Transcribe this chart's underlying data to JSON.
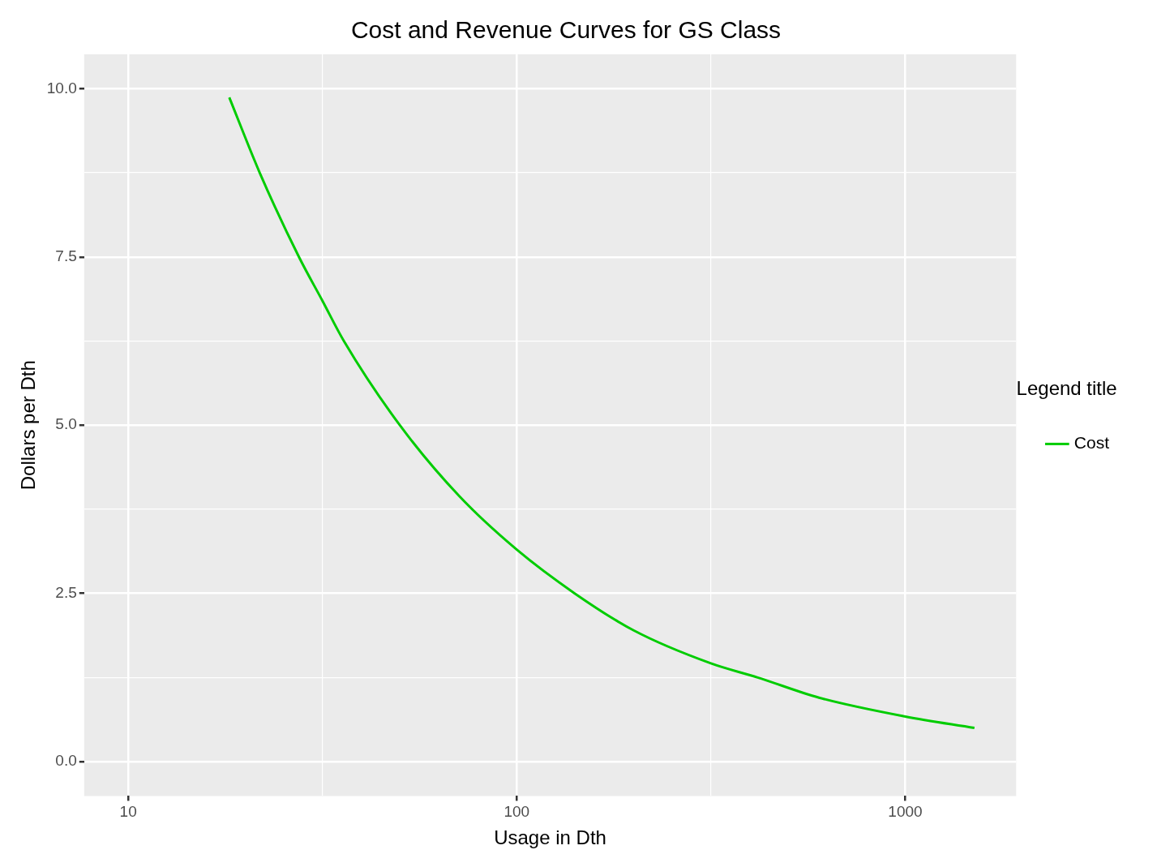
{
  "chart_data": {
    "type": "line",
    "title": "Cost and Revenue Curves for GS Class",
    "xlabel": "Usage in Dth",
    "ylabel": "Dollars per Dth",
    "legend_title": "Legend title",
    "log": "x",
    "x": [
      18.2,
      21.8,
      27.5,
      31.6,
      35.9,
      50,
      71,
      100,
      141,
      200,
      316,
      417,
      600,
      1000,
      1507
    ],
    "series": [
      {
        "name": "Cost",
        "color": "#00cc00",
        "values": [
          9.87,
          8.75,
          7.5,
          6.85,
          6.25,
          5.0,
          3.95,
          3.15,
          2.5,
          1.95,
          1.46,
          1.25,
          0.95,
          0.67,
          0.5
        ]
      }
    ],
    "xlim": [
      7.7,
      1930
    ],
    "xticks": [
      10,
      {
        "value": 31.62,
        "label": null
      },
      100,
      {
        "value": 316.2,
        "label": null
      },
      1000
    ],
    "ylim": [
      -0.51,
      10.51
    ],
    "yticks": [
      {
        "value": 0,
        "label": "0.0"
      },
      {
        "value": 1.25,
        "label": null
      },
      {
        "value": 2.5,
        "label": "2.5"
      },
      {
        "value": 3.75,
        "label": null
      },
      {
        "value": 5,
        "label": "5.0"
      },
      {
        "value": 6.25,
        "label": null
      },
      {
        "value": 7.5,
        "label": "7.5"
      },
      {
        "value": 8.75,
        "label": null
      },
      {
        "value": 10,
        "label": "10.0"
      }
    ],
    "grid": true,
    "legend": "right",
    "marker": "none",
    "line_style": "solid"
  }
}
